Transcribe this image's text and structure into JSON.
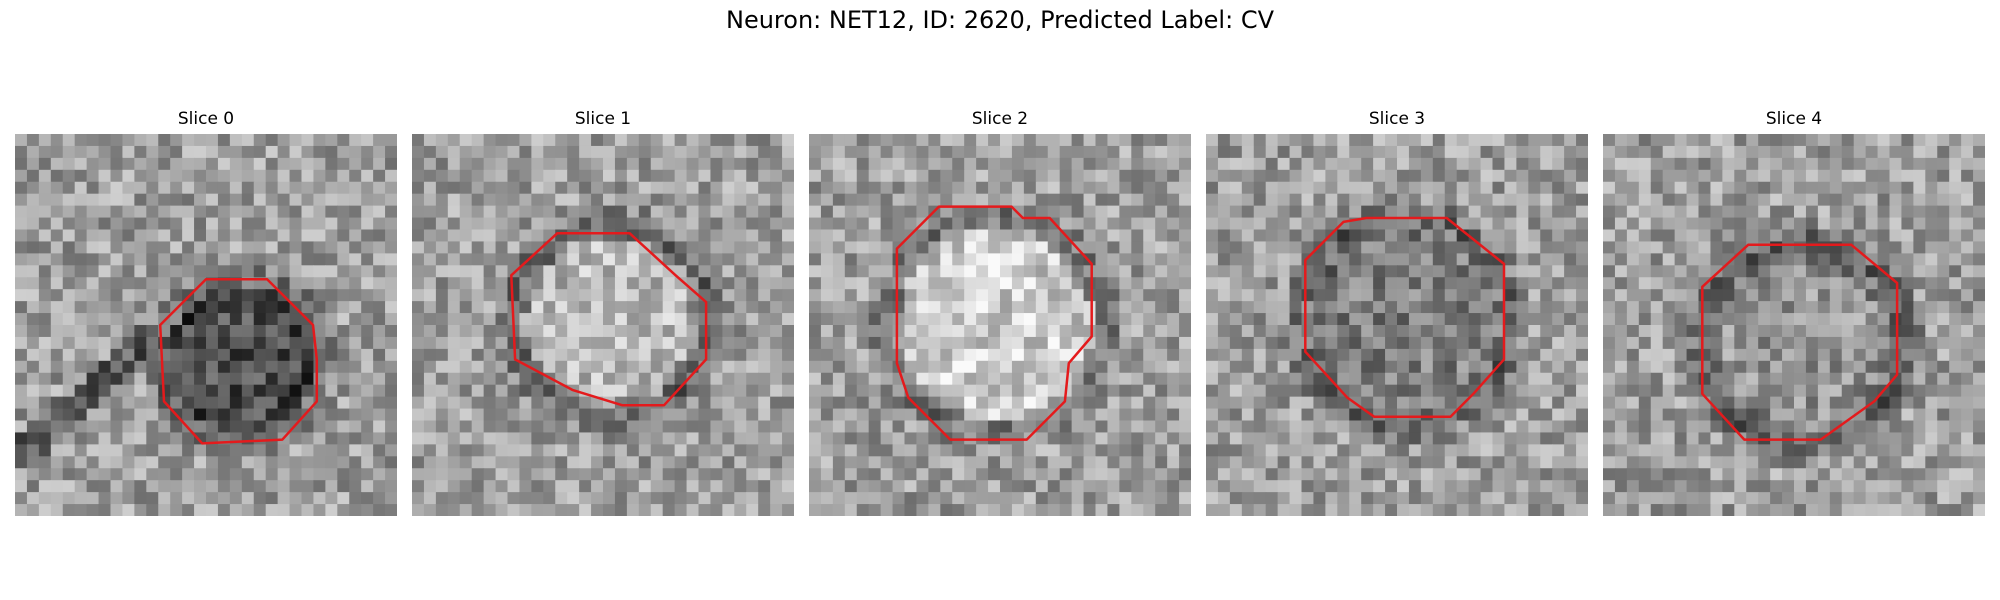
{
  "figure": {
    "title": "Neuron: NET12, ID: 2620, Predicted Label: CV"
  },
  "panels": [
    {
      "title": "Slice 0",
      "outline_color": "#e41a1c"
    },
    {
      "title": "Slice 1",
      "outline_color": "#e41a1c"
    },
    {
      "title": "Slice 2",
      "outline_color": "#e41a1c"
    },
    {
      "title": "Slice 3",
      "outline_color": "#e41a1c"
    },
    {
      "title": "Slice 4",
      "outline_color": "#e41a1c"
    }
  ]
}
